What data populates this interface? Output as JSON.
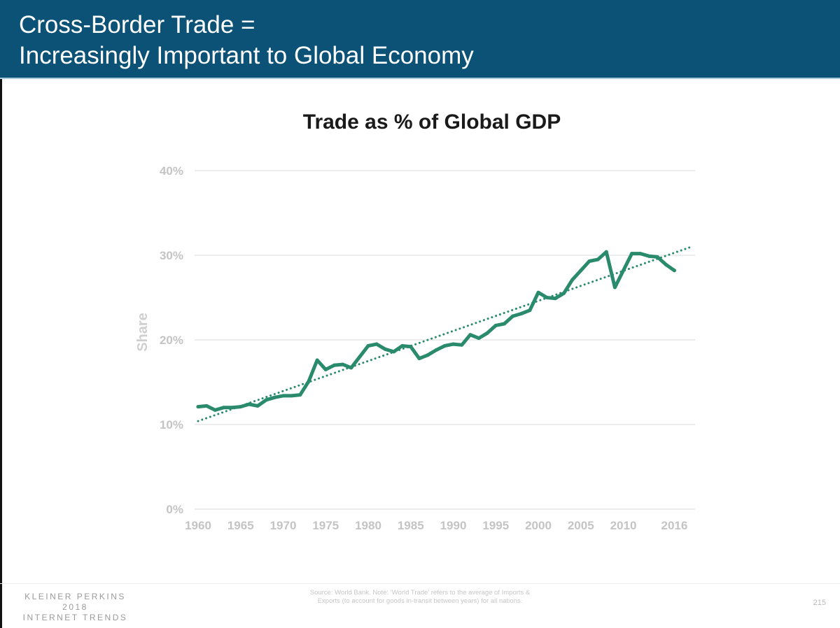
{
  "header": {
    "title_line1": "Cross-Border Trade =",
    "title_line2": "Increasingly Important to Global Economy"
  },
  "colors": {
    "header_bg": "#0b5276",
    "line": "#2a8a6c",
    "trend": "#2a8a6c",
    "grid": "#e6e6e6",
    "tick_text": "#c4c4c4"
  },
  "chart_data": {
    "type": "line",
    "title": "Trade as % of Global GDP",
    "xlabel": "",
    "ylabel": "Share",
    "ylim": [
      0,
      40
    ],
    "xlim": [
      1960,
      2016
    ],
    "y_ticks": [
      0,
      10,
      20,
      30,
      40
    ],
    "y_tick_labels": [
      "0%",
      "10%",
      "20%",
      "30%",
      "40%"
    ],
    "x_ticks": [
      1960,
      1965,
      1970,
      1975,
      1980,
      1985,
      1990,
      1995,
      2000,
      2005,
      2010,
      2016
    ],
    "x_tick_labels": [
      "1960",
      "1965",
      "1970",
      "1975",
      "1980",
      "1985",
      "1990",
      "1995",
      "2000",
      "2005",
      "2010",
      "2016"
    ],
    "grid": true,
    "legend": "none",
    "series": [
      {
        "name": "Trade as % of Global GDP",
        "style": "solid",
        "x": [
          1960,
          1961,
          1962,
          1963,
          1964,
          1965,
          1966,
          1967,
          1968,
          1969,
          1970,
          1971,
          1972,
          1973,
          1974,
          1975,
          1976,
          1977,
          1978,
          1979,
          1980,
          1981,
          1982,
          1983,
          1984,
          1985,
          1986,
          1987,
          1988,
          1989,
          1990,
          1991,
          1992,
          1993,
          1994,
          1995,
          1996,
          1997,
          1998,
          1999,
          2000,
          2001,
          2002,
          2003,
          2004,
          2005,
          2006,
          2007,
          2008,
          2009,
          2010,
          2011,
          2012,
          2013,
          2014,
          2015,
          2016
        ],
        "values": [
          12.1,
          12.2,
          11.7,
          12.0,
          12.0,
          12.1,
          12.4,
          12.2,
          12.9,
          13.2,
          13.4,
          13.4,
          13.5,
          15.1,
          17.6,
          16.5,
          17.0,
          17.1,
          16.7,
          18.0,
          19.3,
          19.5,
          18.9,
          18.6,
          19.3,
          19.2,
          17.8,
          18.2,
          18.8,
          19.3,
          19.5,
          19.4,
          20.6,
          20.2,
          20.8,
          21.7,
          21.9,
          22.8,
          23.1,
          23.5,
          25.6,
          25.0,
          24.9,
          25.5,
          27.1,
          28.2,
          29.3,
          29.5,
          30.4,
          26.2,
          28.2,
          30.2,
          30.2,
          29.9,
          29.8,
          28.9,
          28.2
        ]
      },
      {
        "name": "Trend",
        "style": "dotted",
        "x": [
          1960,
          2018
        ],
        "values": [
          10.4,
          31.0
        ]
      }
    ]
  },
  "footer": {
    "brand_line1": "KLEINER PERKINS",
    "brand_line2": "2018",
    "brand_line3": "INTERNET TRENDS",
    "source_line1": "Source: World Bank. Note: ‘World Trade’ refers to the average of Imports &",
    "source_line2": "Exports (to account for goods in-transit between years) for all nations.",
    "page_number": "215"
  }
}
